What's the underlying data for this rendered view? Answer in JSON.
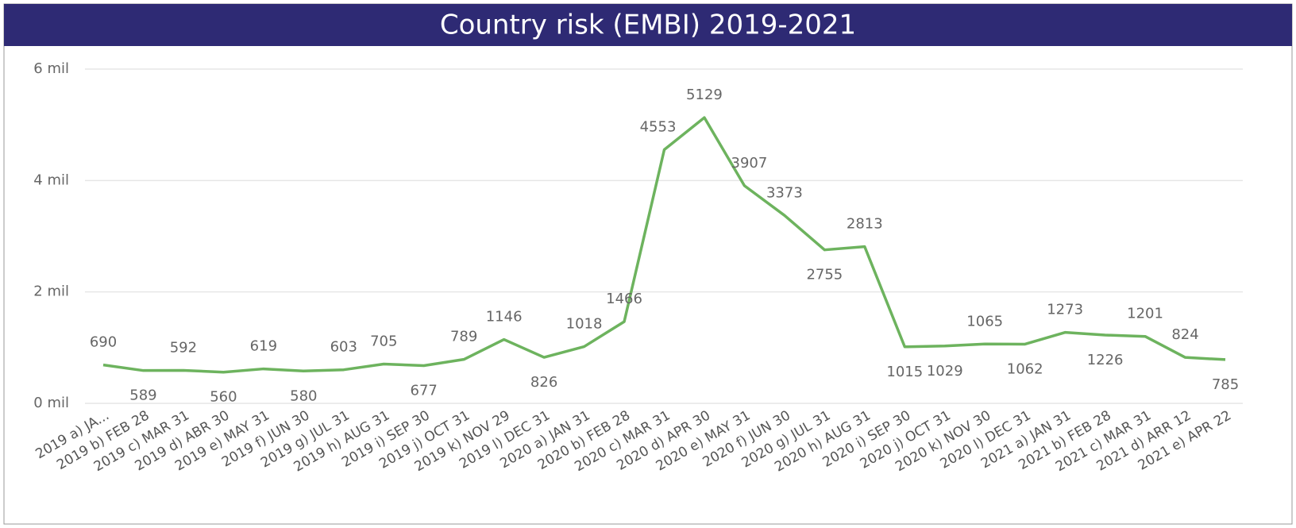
{
  "chart_data": {
    "type": "line",
    "title": "Country risk (EMBI) 2019-2021",
    "categories": [
      "2019 a) JA...",
      "2019 b) FEB 28",
      "2019 c) MAR 31",
      "2019 d) ABR 30",
      "2019 e) MAY 31",
      "2019 f) JUN 30",
      "2019 g) JUL 31",
      "2019 h) AUG 31",
      "2019 i) SEP 30",
      "2019 j) OCT 31",
      "2019 k) NOV 29",
      "2019 l) DEC 31",
      "2020 a) JAN 31",
      "2020 b) FEB 28",
      "2020 c) MAR 31",
      "2020 d) APR 30",
      "2020 e) MAY 31",
      "2020 f) JUN 30",
      "2020 g) JUL 31",
      "2020 h) AUG 31",
      "2020 i) SEP 30",
      "2020 j) OCT 31",
      "2020 k) NOV 30",
      "2020 l) DEC 31",
      "2021 a) JAN 31",
      "2021 b) FEB 28",
      "2021 c) MAR 31",
      "2021 d) ARR 12",
      "2021 e) APR 22"
    ],
    "values": [
      690,
      589,
      592,
      560,
      619,
      580,
      603,
      705,
      677,
      789,
      1146,
      826,
      1018,
      1466,
      4553,
      5129,
      3907,
      3373,
      2755,
      2813,
      1015,
      1029,
      1065,
      1062,
      1273,
      1226,
      1201,
      824,
      785
    ],
    "color": "#6db35e",
    "ylim": [
      0,
      6000
    ],
    "yticks": [
      {
        "value": 0,
        "label": "0 mil"
      },
      {
        "value": 2000,
        "label": "2 mil"
      },
      {
        "value": 4000,
        "label": "4 mil"
      },
      {
        "value": 6000,
        "label": "6 mil"
      }
    ],
    "grid": true
  }
}
